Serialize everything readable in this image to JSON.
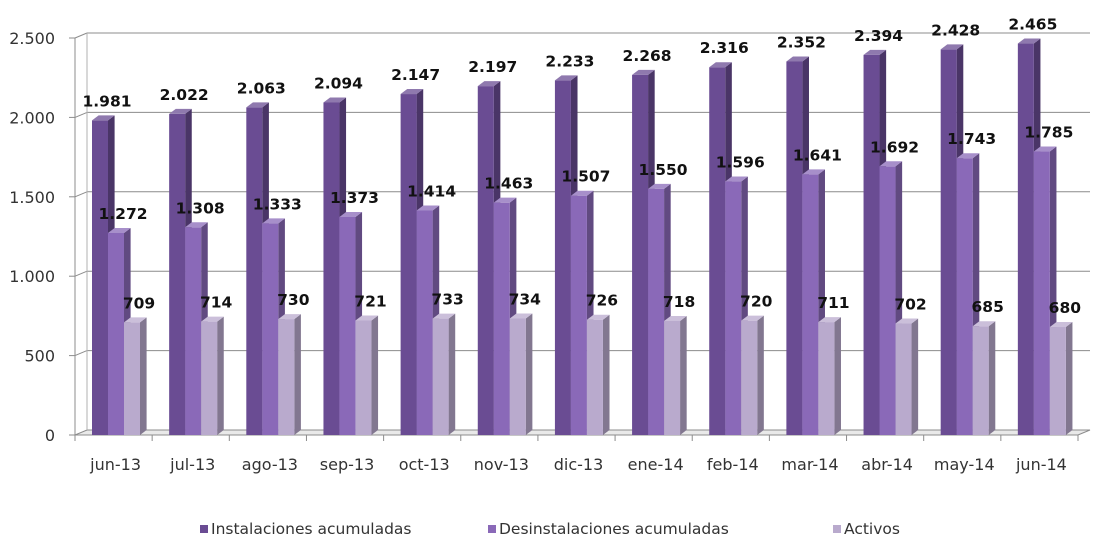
{
  "chart_data": {
    "type": "bar",
    "categories": [
      "jun-13",
      "jul-13",
      "ago-13",
      "sep-13",
      "oct-13",
      "nov-13",
      "dic-13",
      "ene-14",
      "feb-14",
      "mar-14",
      "abr-14",
      "may-14",
      "jun-14"
    ],
    "series": [
      {
        "name": "Instalaciones acumuladas",
        "color": "#6A4C93",
        "values": [
          1981,
          2022,
          2063,
          2094,
          2147,
          2197,
          2233,
          2268,
          2316,
          2352,
          2394,
          2428,
          2465
        ],
        "labels": [
          "1.981",
          "2.022",
          "2.063",
          "2.094",
          "2.147",
          "2.197",
          "2.233",
          "2.268",
          "2.316",
          "2.352",
          "2.394",
          "2.428",
          "2.465"
        ]
      },
      {
        "name": "Desinstalaciones acumuladas",
        "color": "#8A69B8",
        "values": [
          1272,
          1308,
          1333,
          1373,
          1414,
          1463,
          1507,
          1550,
          1596,
          1641,
          1692,
          1743,
          1785
        ],
        "labels": [
          "1.272",
          "1.308",
          "1.333",
          "1.373",
          "1.414",
          "1.463",
          "1.507",
          "1.550",
          "1.596",
          "1.641",
          "1.692",
          "1.743",
          "1.785"
        ]
      },
      {
        "name": "Activos",
        "color": "#B9AACD",
        "values": [
          709,
          714,
          730,
          721,
          733,
          734,
          726,
          718,
          720,
          711,
          702,
          685,
          680
        ],
        "labels": [
          "709",
          "714",
          "730",
          "721",
          "733",
          "734",
          "726",
          "718",
          "720",
          "711",
          "702",
          "685",
          "680"
        ]
      }
    ],
    "yticks": [
      0,
      500,
      1000,
      1500,
      2000,
      2500
    ],
    "ytick_labels": [
      "0",
      "500",
      "1.000",
      "1.500",
      "2.000",
      "2.500"
    ],
    "ylim": [
      0,
      2500
    ],
    "title": "",
    "xlabel": "",
    "ylabel": "",
    "grid": true,
    "legend_position": "bottom",
    "style": "3d-column"
  }
}
